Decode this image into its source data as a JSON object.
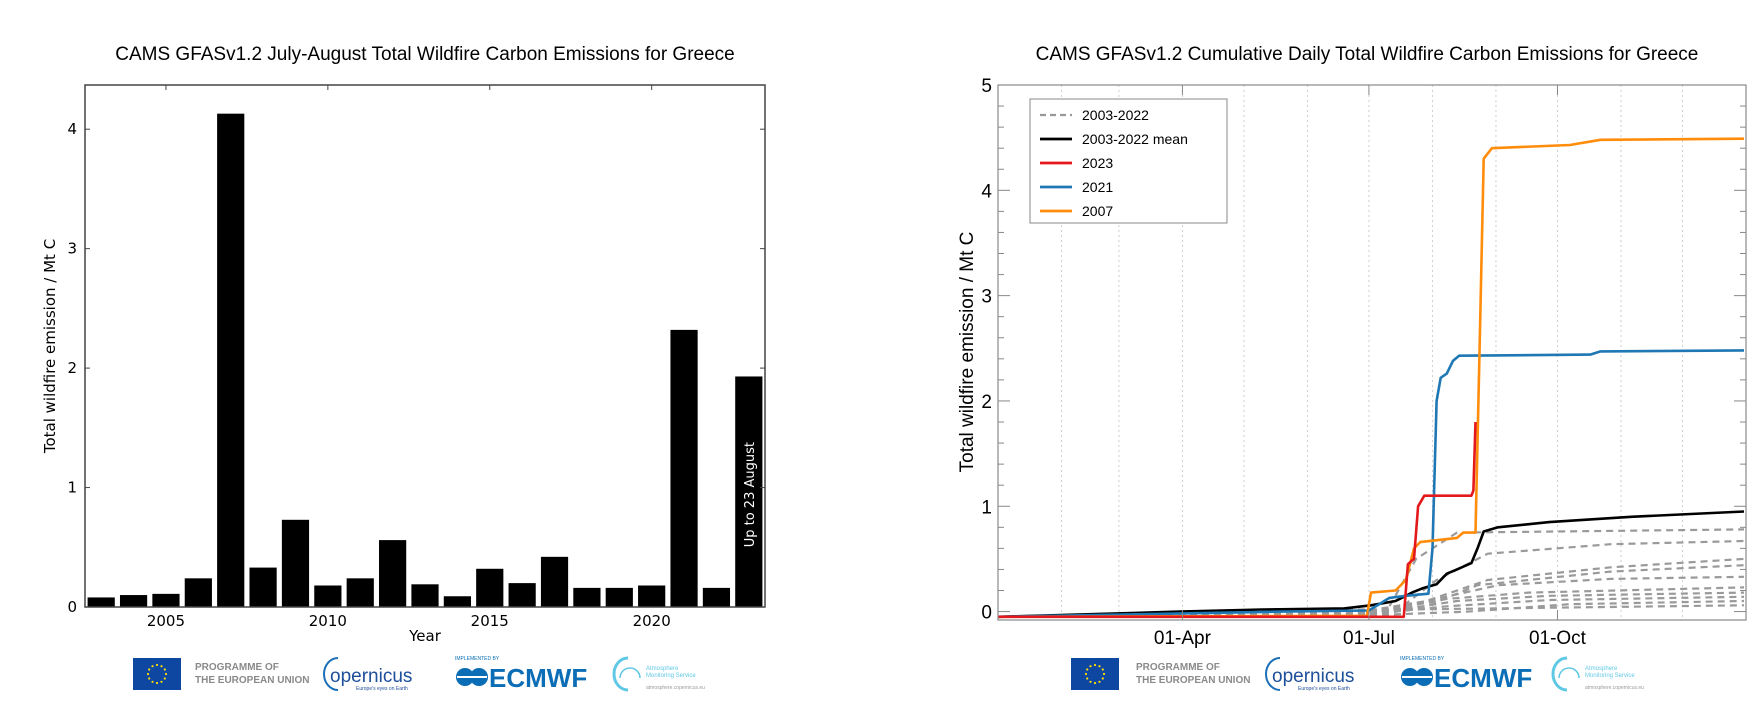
{
  "chart_data": [
    {
      "type": "bar",
      "title": "CAMS GFASv1.2 July-August Total Wildfire Carbon Emissions for Greece",
      "xlabel": "Year",
      "ylabel": "Total wildfire emission / Mt C",
      "categories": [
        2003,
        2004,
        2005,
        2006,
        2007,
        2008,
        2009,
        2010,
        2011,
        2012,
        2013,
        2014,
        2015,
        2016,
        2017,
        2018,
        2019,
        2020,
        2021,
        2022,
        2023
      ],
      "values": [
        0.08,
        0.1,
        0.11,
        0.24,
        4.13,
        0.33,
        0.73,
        0.18,
        0.24,
        0.56,
        0.19,
        0.09,
        0.32,
        0.2,
        0.42,
        0.16,
        0.16,
        0.18,
        2.32,
        0.16,
        1.93
      ],
      "xticks": [
        2005,
        2010,
        2015,
        2020
      ],
      "yticks": [
        0,
        1,
        2,
        3,
        4
      ],
      "xlim": [
        2002.5,
        2023.5
      ],
      "ylim": [
        0,
        4.37
      ],
      "bar_color": "#000000",
      "annotation": "Up to 23 August",
      "grid": false
    },
    {
      "type": "line",
      "title": "CAMS GFASv1.2 Cumulative Daily Total Wildfire Carbon Emissions for Greece",
      "xlabel": "",
      "ylabel": "Total wildfire emission / Mt C",
      "x_unit": "day of year",
      "xticks": [
        {
          "day": 91,
          "label": "01-Apr"
        },
        {
          "day": 182,
          "label": "01-Jul"
        },
        {
          "day": 274,
          "label": "01-Oct"
        }
      ],
      "month_gridlines": [
        32,
        60,
        91,
        121,
        152,
        182,
        213,
        244,
        274,
        305,
        335
      ],
      "yticks": [
        0,
        1,
        2,
        3,
        4,
        5
      ],
      "xlim": [
        1,
        366
      ],
      "ylim": [
        -0.08,
        5
      ],
      "grid": "vertical dotted",
      "legend_position": "top-left",
      "legend": [
        {
          "label": "2003-2022",
          "color": "#999999",
          "dash": true
        },
        {
          "label": "2003-2022 mean",
          "color": "#000000",
          "dash": false
        },
        {
          "label": "2023",
          "color": "#e3191c",
          "dash": false
        },
        {
          "label": "2021",
          "color": "#1f78b4",
          "dash": false
        },
        {
          "label": "2007",
          "color": "#ff8c0a",
          "dash": false
        }
      ],
      "background_years": [
        [
          [
            1,
            -0.05
          ],
          [
            100,
            -0.04
          ],
          [
            190,
            -0.02
          ],
          [
            205,
            0.5
          ],
          [
            225,
            0.75
          ],
          [
            365,
            0.78
          ]
        ],
        [
          [
            1,
            -0.05
          ],
          [
            120,
            -0.03
          ],
          [
            195,
            0.0
          ],
          [
            215,
            0.3
          ],
          [
            240,
            0.55
          ],
          [
            300,
            0.64
          ],
          [
            365,
            0.67
          ]
        ],
        [
          [
            1,
            -0.05
          ],
          [
            170,
            -0.03
          ],
          [
            210,
            0.1
          ],
          [
            240,
            0.3
          ],
          [
            300,
            0.42
          ],
          [
            365,
            0.5
          ]
        ],
        [
          [
            1,
            -0.05
          ],
          [
            170,
            -0.03
          ],
          [
            210,
            0.05
          ],
          [
            235,
            0.25
          ],
          [
            300,
            0.38
          ],
          [
            365,
            0.44
          ]
        ],
        [
          [
            1,
            -0.05
          ],
          [
            180,
            -0.03
          ],
          [
            215,
            0.12
          ],
          [
            245,
            0.25
          ],
          [
            300,
            0.31
          ],
          [
            365,
            0.33
          ]
        ],
        [
          [
            1,
            -0.05
          ],
          [
            180,
            -0.03
          ],
          [
            220,
            0.12
          ],
          [
            260,
            0.18
          ],
          [
            365,
            0.23
          ]
        ],
        [
          [
            1,
            -0.05
          ],
          [
            185,
            -0.02
          ],
          [
            225,
            0.1
          ],
          [
            270,
            0.15
          ],
          [
            365,
            0.18
          ]
        ],
        [
          [
            1,
            -0.05
          ],
          [
            185,
            -0.02
          ],
          [
            220,
            0.05
          ],
          [
            270,
            0.11
          ],
          [
            365,
            0.14
          ]
        ],
        [
          [
            1,
            -0.05
          ],
          [
            190,
            -0.03
          ],
          [
            230,
            0.0
          ],
          [
            280,
            0.07
          ],
          [
            365,
            0.1
          ]
        ],
        [
          [
            1,
            -0.05
          ],
          [
            140,
            0.02
          ],
          [
            200,
            0.02
          ],
          [
            365,
            0.06
          ]
        ]
      ],
      "series": [
        {
          "name": "2003-2022 mean",
          "color": "#000000",
          "points": [
            [
              1,
              -0.05
            ],
            [
              90,
              0.0
            ],
            [
              130,
              0.02
            ],
            [
              170,
              0.03
            ],
            [
              183,
              0.06
            ],
            [
              195,
              0.1
            ],
            [
              203,
              0.18
            ],
            [
              208,
              0.22
            ],
            [
              215,
              0.26
            ],
            [
              220,
              0.36
            ],
            [
              225,
              0.4
            ],
            [
              232,
              0.46
            ],
            [
              235,
              0.6
            ],
            [
              238,
              0.76
            ],
            [
              245,
              0.8
            ],
            [
              270,
              0.85
            ],
            [
              310,
              0.9
            ],
            [
              365,
              0.95
            ]
          ]
        },
        {
          "name": "2021",
          "color": "#1f78b4",
          "points": [
            [
              1,
              -0.05
            ],
            [
              140,
              0.0
            ],
            [
              182,
              0.01
            ],
            [
              192,
              0.13
            ],
            [
              200,
              0.15
            ],
            [
              211,
              0.17
            ],
            [
              213,
              0.6
            ],
            [
              215,
              2.0
            ],
            [
              217,
              2.22
            ],
            [
              220,
              2.26
            ],
            [
              223,
              2.38
            ],
            [
              226,
              2.43
            ],
            [
              290,
              2.44
            ],
            [
              295,
              2.47
            ],
            [
              365,
              2.48
            ]
          ]
        },
        {
          "name": "2007",
          "color": "#ff8c0a",
          "points": [
            [
              1,
              -0.05
            ],
            [
              181,
              -0.04
            ],
            [
              183,
              0.18
            ],
            [
              195,
              0.2
            ],
            [
              200,
              0.3
            ],
            [
              204,
              0.6
            ],
            [
              207,
              0.66
            ],
            [
              225,
              0.7
            ],
            [
              228,
              0.75
            ],
            [
              234,
              0.75
            ],
            [
              236,
              2.5
            ],
            [
              238,
              4.3
            ],
            [
              242,
              4.4
            ],
            [
              280,
              4.43
            ],
            [
              295,
              4.48
            ],
            [
              365,
              4.49
            ]
          ]
        },
        {
          "name": "2023",
          "color": "#e3191c",
          "points": [
            [
              1,
              -0.05
            ],
            [
              199,
              -0.05
            ],
            [
              201,
              0.45
            ],
            [
              204,
              0.5
            ],
            [
              206,
              1.0
            ],
            [
              209,
              1.1
            ],
            [
              232,
              1.1
            ],
            [
              233,
              1.15
            ],
            [
              234,
              1.8
            ]
          ]
        }
      ]
    }
  ],
  "logos": {
    "eu_text_line1": "PROGRAMME OF",
    "eu_text_line2": "THE EUROPEAN UNION",
    "copernicus": "opernicus",
    "copernicus_tagline": "Europe's eyes on Earth",
    "implemented_by": "IMPLEMENTED BY",
    "ecmwf": "ECMWF",
    "cams_line1": "Atmosphere",
    "cams_line2": "Monitoring Service",
    "cams_url": "atmosphere.copernicus.eu",
    "eu_blue": "#0e47a1",
    "eu_star": "#ffdd00",
    "ecmwf_blue": "#0a6db5",
    "cams_cyan": "#5ec8e5"
  }
}
